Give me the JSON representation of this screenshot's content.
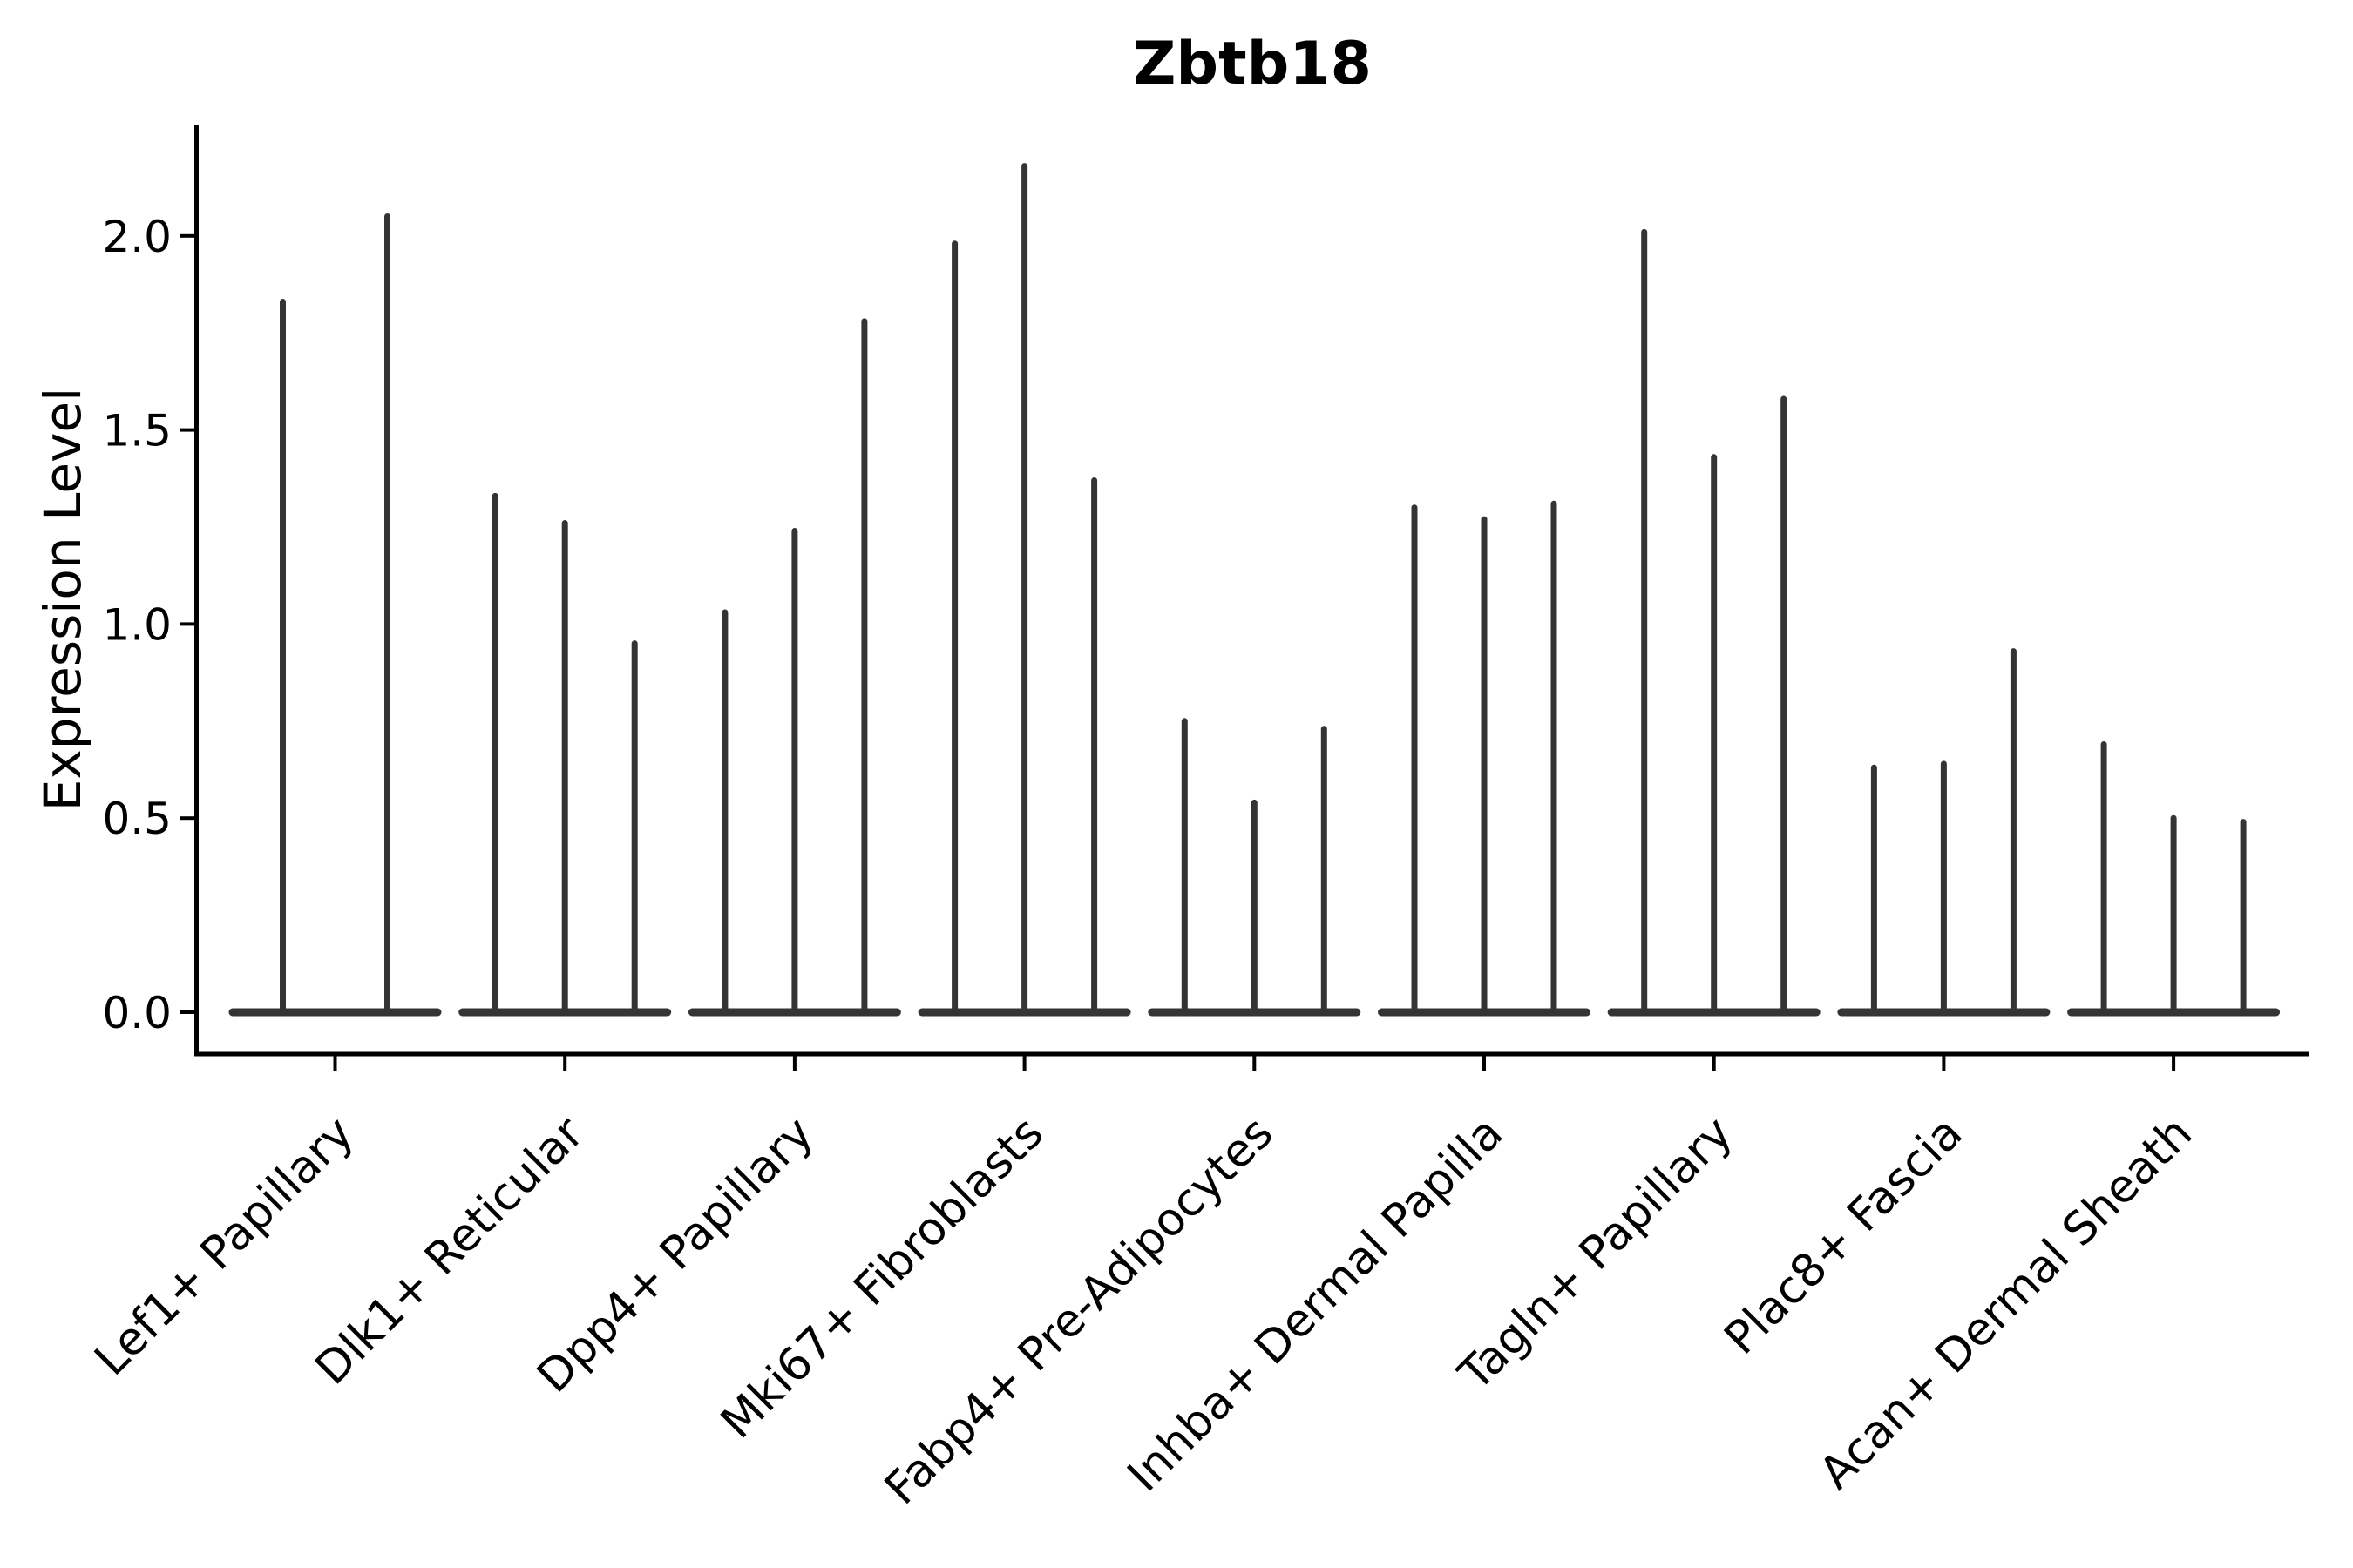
{
  "figure": {
    "title": "Zbtb18",
    "ylabel": "Expression Level"
  },
  "chart_data": {
    "type": "violin",
    "title": "Zbtb18",
    "ylabel": "Expression Level",
    "xlabel": "",
    "legend_position": "none",
    "grid": false,
    "background": "#ffffff",
    "ylim": [
      -0.11,
      2.29
    ],
    "yticks": [
      0.0,
      0.5,
      1.0,
      1.5,
      2.0
    ],
    "ytick_labels": [
      "0.0",
      "0.5",
      "1.0",
      "1.5",
      "2.0"
    ],
    "x_tick_rotation_deg": 45,
    "violin_style": "thin spikes rising from a flat base at expression 0 (most cells zero); up to 3 violins per category",
    "groups": [
      {
        "category": "Lef1+ Papillary",
        "violin_peaks": [
          1.83,
          2.05
        ]
      },
      {
        "category": "Dlk1+ Reticular",
        "violin_peaks": [
          1.33,
          1.26,
          0.95
        ]
      },
      {
        "category": "Dpp4+ Papillary",
        "violin_peaks": [
          1.03,
          1.24,
          1.78
        ]
      },
      {
        "category": "Mki67+ Fibroblasts",
        "violin_peaks": [
          1.98,
          2.18,
          1.37
        ]
      },
      {
        "category": "Fabp4+ Pre-Adipocytes",
        "violin_peaks": [
          0.75,
          0.54,
          0.73
        ]
      },
      {
        "category": "Inhba+ Dermal Papilla",
        "violin_peaks": [
          1.3,
          1.27,
          1.31
        ]
      },
      {
        "category": "Tagln+ Papillary",
        "violin_peaks": [
          2.01,
          1.43,
          1.58
        ]
      },
      {
        "category": "Plac8+ Fascia",
        "violin_peaks": [
          0.63,
          0.64,
          0.93
        ]
      },
      {
        "category": "Acan+ Dermal Sheath",
        "violin_peaks": [
          0.69,
          0.5,
          0.49
        ]
      }
    ],
    "baseline_value": 0.0,
    "colors": {
      "violin": "#343434",
      "axis": "#000000",
      "text": "#000000"
    }
  }
}
